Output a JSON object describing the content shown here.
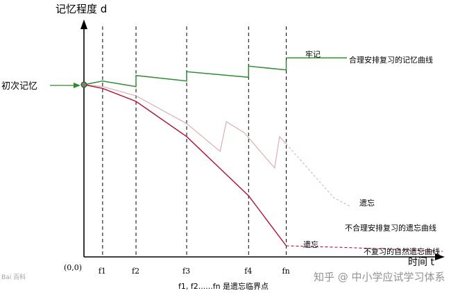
{
  "chart_data": {
    "type": "line",
    "ylabel": "记忆程度 d",
    "xlabel": "时间 t",
    "origin_label": "(0,0)",
    "x_ticks": [
      "f1",
      "f2",
      "f3",
      "f4",
      "fn"
    ],
    "footnote": "f1, f2......fn 是遗忘临界点",
    "start_label": "初次记忆",
    "ylim": [
      0,
      100
    ],
    "xlim": [
      0,
      100
    ],
    "tick_positions": [
      5.3,
      14.8,
      29.2,
      46.8,
      57.5
    ],
    "series": [
      {
        "name": "合理安排复习的记忆曲线",
        "color": "#2e8b2e",
        "end_label": "牢记",
        "x": [
          0,
          5.3,
          14.8,
          14.8,
          29.2,
          29.2,
          46.8,
          46.8,
          57.5,
          57.5
        ],
        "y": [
          90,
          92,
          89,
          95,
          92,
          97,
          94,
          100,
          98,
          103
        ]
      },
      {
        "name": "不合理安排复习的遗忘曲线",
        "color": "#d8a8a8",
        "end_label": "遗忘",
        "x": [
          0,
          5.3,
          14.8,
          29.2,
          38.7,
          40.5,
          45.6,
          54.2,
          55.6,
          57.5,
          71.0,
          76.0
        ],
        "y": [
          90,
          89,
          84,
          69,
          54,
          70,
          64,
          45,
          62,
          58,
          29,
          24
        ]
      },
      {
        "name": "不复习的自然遗忘曲线",
        "color": "#b01030",
        "end_label": "遗忘",
        "x": [
          0,
          5.3,
          14.8,
          29.2,
          46.8,
          57.5,
          76.0,
          102.0
        ],
        "y": [
          90,
          88,
          81,
          62,
          30,
          3,
          2,
          0
        ]
      }
    ]
  },
  "watermark": {
    "left_text": "Bai 百科",
    "right_text": "知乎 @ 中小学应试学习体系"
  }
}
